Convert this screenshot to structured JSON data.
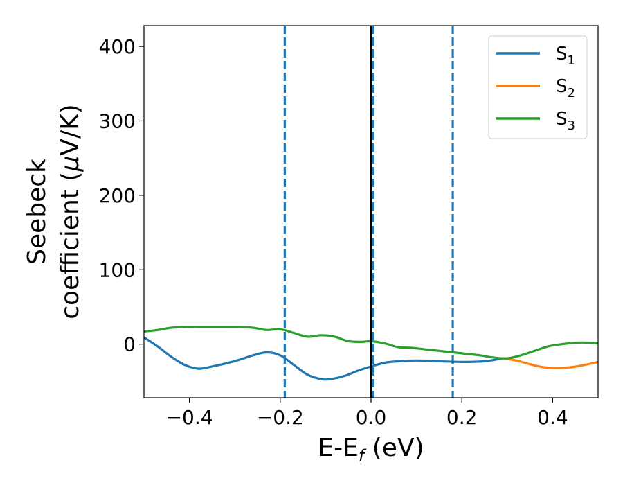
{
  "chart_data": {
    "type": "line",
    "xlabel": "E-E$_f$ (eV)",
    "xlabel_parts": {
      "main": "E-E",
      "sub": "f",
      "tail": " (eV)"
    },
    "ylabel_lines": [
      "Seebeck",
      "coefficient  ($\\mu$V/K)"
    ],
    "ylabel_parts": {
      "line1": "Seebeck",
      "line2_pre": "coefficient  (",
      "mu": "μ",
      "line2_post": "V/K)"
    },
    "xlim": [
      -0.5,
      0.5
    ],
    "ylim": [
      -72,
      428
    ],
    "xticks": [
      -0.4,
      -0.2,
      0.0,
      0.2,
      0.4
    ],
    "xtick_labels": [
      "−0.4",
      "−0.2",
      "0.0",
      "0.2",
      "0.4"
    ],
    "yticks": [
      0,
      100,
      200,
      300,
      400
    ],
    "ytick_labels": [
      "0",
      "100",
      "200",
      "300",
      "400"
    ],
    "grid": false,
    "legend_position": "top-right",
    "series": [
      {
        "name": "S$_1$",
        "legend_main": "S",
        "legend_sub": "1",
        "color": "#1f77b4",
        "x": [
          -0.5,
          -0.47,
          -0.44,
          -0.41,
          -0.38,
          -0.35,
          -0.32,
          -0.29,
          -0.26,
          -0.23,
          -0.2,
          -0.17,
          -0.14,
          -0.11,
          -0.09,
          -0.06,
          -0.03,
          0.0,
          0.03,
          0.06,
          0.1,
          0.15,
          0.2,
          0.25,
          0.29
        ],
        "y": [
          9,
          -3,
          -17,
          -28,
          -33,
          -30,
          -26,
          -21,
          -15,
          -11,
          -15,
          -28,
          -41,
          -47,
          -47,
          -43,
          -36,
          -30,
          -25,
          -23,
          -22,
          -23,
          -24,
          -23,
          -19
        ]
      },
      {
        "name": "S$_2$",
        "legend_main": "S",
        "legend_sub": "2",
        "color": "#ff7f0e",
        "x": [
          0.29,
          0.32,
          0.35,
          0.38,
          0.41,
          0.44,
          0.47,
          0.5
        ],
        "y": [
          -19,
          -22,
          -27,
          -31,
          -32,
          -31,
          -28,
          -24
        ]
      },
      {
        "name": "S$_3$",
        "legend_main": "S",
        "legend_sub": "3",
        "color": "#2ca02c",
        "x": [
          -0.5,
          -0.47,
          -0.44,
          -0.41,
          -0.38,
          -0.35,
          -0.32,
          -0.29,
          -0.26,
          -0.23,
          -0.2,
          -0.17,
          -0.14,
          -0.11,
          -0.08,
          -0.05,
          -0.02,
          0.0,
          0.03,
          0.06,
          0.09,
          0.12,
          0.15,
          0.18,
          0.21,
          0.24,
          0.27,
          0.3,
          0.33,
          0.36,
          0.39,
          0.42,
          0.45,
          0.48,
          0.5
        ],
        "y": [
          17,
          19,
          22,
          23,
          23,
          23,
          23,
          23,
          22,
          19,
          20,
          15,
          10,
          12,
          10,
          4,
          3,
          4,
          1,
          -4,
          -5,
          -7,
          -9,
          -11,
          -13,
          -15,
          -18,
          -19,
          -15,
          -9,
          -3,
          0,
          2,
          2,
          1
        ]
      }
    ],
    "vlines": [
      {
        "x": -0.19,
        "style": "dashed",
        "color": "#1f77b4"
      },
      {
        "x": 0.005,
        "style": "dashed",
        "color": "#1f77b4"
      },
      {
        "x": 0.18,
        "style": "dashed",
        "color": "#1f77b4"
      },
      {
        "x": 0.0,
        "style": "solid",
        "color": "#000000"
      }
    ]
  }
}
